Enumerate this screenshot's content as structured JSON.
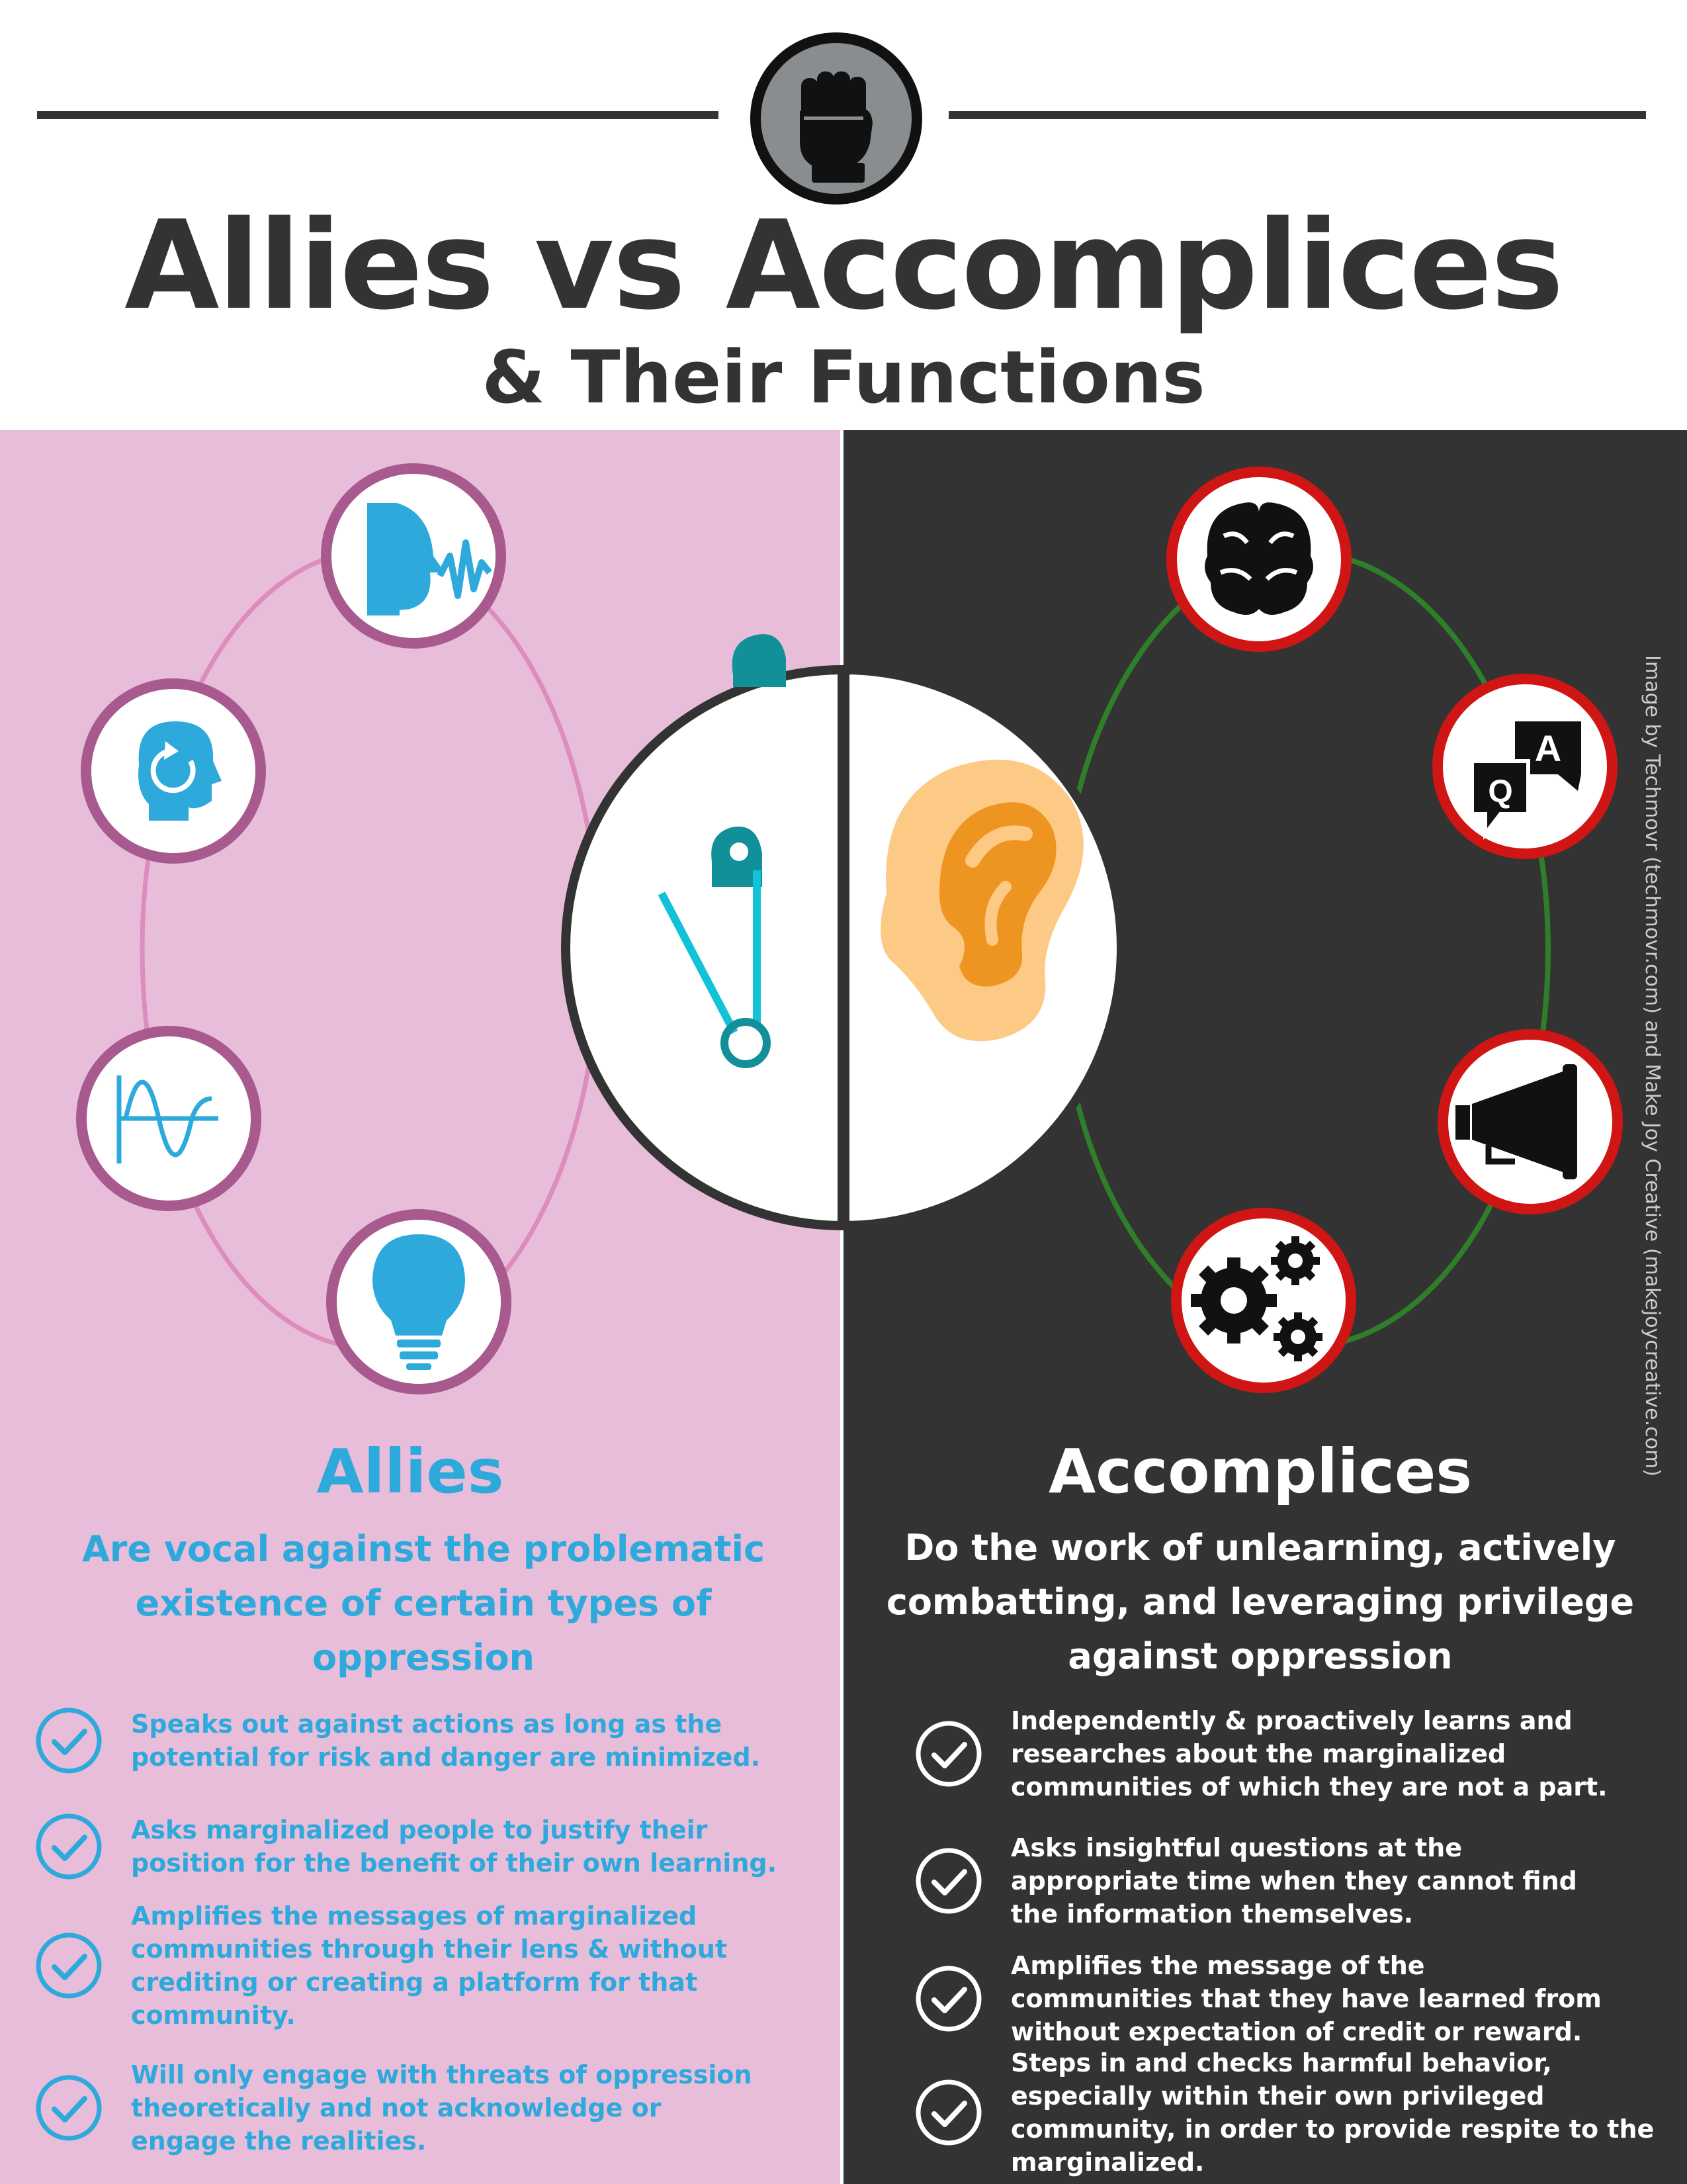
{
  "header": {
    "title": "Allies vs Accomplices",
    "subtitle": "& Their Functions",
    "badge_icon": "raised-fist-icon"
  },
  "allies": {
    "heading": "Allies",
    "description": "Are vocal against the problematic existence of certain types of oppression",
    "center_icon": "safety-pin-icon",
    "orbit_icons": [
      "speaking-head-icon",
      "head-refresh-icon",
      "sound-wave-icon",
      "light-bulb-icon"
    ],
    "items": [
      "Speaks out against actions as long as the potential for risk and danger are minimized.",
      "Asks marginalized people to justify their position for the benefit of their own learning.",
      "Amplifies the messages of marginalized  communities through their lens & without crediting or creating a platform for that community.",
      "Will only engage with threats of oppression theoretically and not acknowledge or engage the realities."
    ]
  },
  "accomplices": {
    "heading": "Accomplices",
    "description": "Do the work of unlearning, actively combatting, and leveraging privilege against oppression",
    "center_icon": "ear-icon",
    "orbit_icons": [
      "brain-icon",
      "qa-speech-bubbles-icon",
      "megaphone-icon",
      "gears-icon"
    ],
    "items": [
      "Independently & proactively learns and researches about the marginalized communities of which they are not a part.",
      "Asks insightful questions at the appropriate time when they cannot find the information themselves.",
      "Amplifies the message of the communities that they have learned from without expectation of credit or reward.",
      "Steps in and checks harmful behavior, especially within their own privileged community, in order to provide respite to the marginalized."
    ]
  },
  "qa_letters": {
    "a": "A",
    "q": "Q"
  },
  "credit": "Image by Techmovr (techmovr.com) and Make Joy Creative (makejoycreative.com)",
  "colors": {
    "dark": "#333333",
    "allies_bg": "#e8bdd9",
    "allies_blue": "#2ea9dc",
    "allies_ring": "#a85a8e",
    "allies_orbit": "#dc8cbd",
    "accomplices_ring": "#d01515",
    "accomplices_orbit": "#2f7f2a",
    "teal": "#12909a",
    "ear_outer": "#fcca85",
    "ear_inner": "#ee9420"
  }
}
